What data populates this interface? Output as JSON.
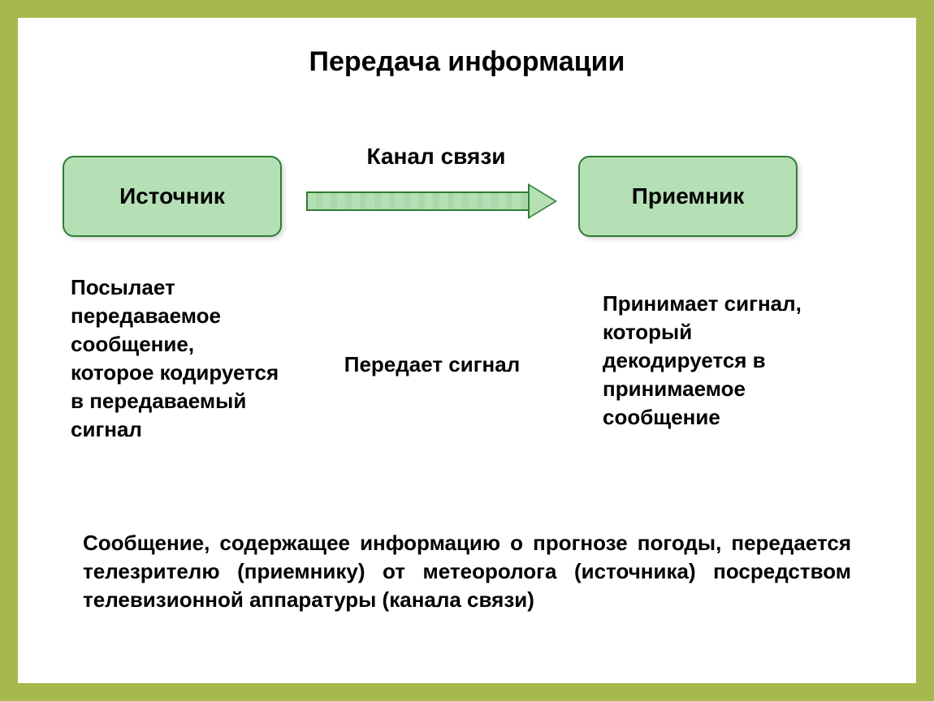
{
  "slide": {
    "title": "Передача информации",
    "frame_color": "#a6b84e",
    "background_color": "#ffffff"
  },
  "diagram": {
    "type": "flowchart",
    "nodes": {
      "source": {
        "label": "Источник",
        "bg_color": "#b5e0b5",
        "border_color": "#2e7d32",
        "border_radius": 14,
        "fontsize": 28
      },
      "receiver": {
        "label": "Приемник",
        "bg_color": "#b5e0b5",
        "border_color": "#2e7d32",
        "border_radius": 14,
        "fontsize": 28
      }
    },
    "edge": {
      "label_above": "Канал связи",
      "shaft_fill": "#b5e0b5",
      "border_color": "#2e7d32",
      "head_color": "#b5e0b5"
    },
    "descriptions": {
      "source": "Посылает передаваемое сообщение, которое кодируется в передаваемый сигнал",
      "channel": "Передает сигнал",
      "receiver": "Принимает сигнал, который декодируется в принимаемое сообщение"
    }
  },
  "footer": {
    "text": "Сообщение, содержащее информацию о прогнозе погоды, передается телезрителю (приемнику) от метеоролога (источника) посредством телевизионной аппаратуры (канала связи)"
  },
  "typography": {
    "title_fontsize": 34,
    "node_fontsize": 28,
    "body_fontsize": 26,
    "font_family": "Arial",
    "text_color": "#000000"
  }
}
